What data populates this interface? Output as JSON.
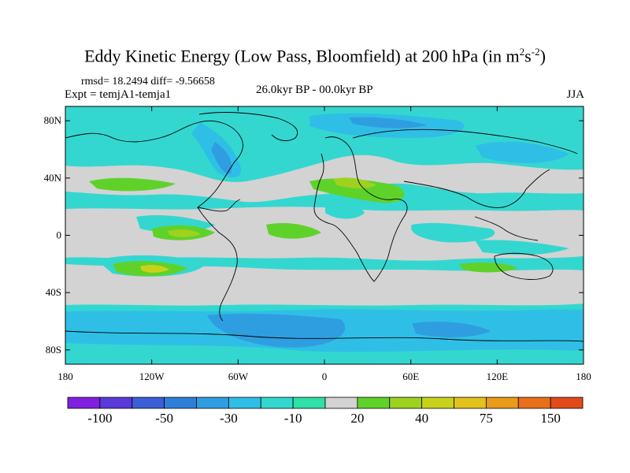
{
  "title_main": "Eddy Kinetic Energy (Low Pass, Bloomfield) at 200 hPa (in m",
  "title_sup1": "2",
  "title_mid": "s",
  "title_sup2": "-2",
  "title_end": ")",
  "stats": "rmsd= 18.2494 diff= -9.56658",
  "expt": "Expt = temjA1-temja1",
  "period": "26.0kyr BP - 00.0kyr BP",
  "season": "JJA",
  "lat_ticks": [
    {
      "lat": 80,
      "label": "80N"
    },
    {
      "lat": 40,
      "label": "40N"
    },
    {
      "lat": 0,
      "label": "0"
    },
    {
      "lat": -40,
      "label": "40S"
    },
    {
      "lat": -80,
      "label": "80S"
    }
  ],
  "lon_ticks": [
    {
      "lon": -180,
      "label": "180"
    },
    {
      "lon": -120,
      "label": "120W"
    },
    {
      "lon": -60,
      "label": "60W"
    },
    {
      "lon": 0,
      "label": "0"
    },
    {
      "lon": 60,
      "label": "60E"
    },
    {
      "lon": 120,
      "label": "120E"
    },
    {
      "lon": 180,
      "label": "180"
    }
  ],
  "colorbar": {
    "colors": [
      "#7f1fe0",
      "#5a3ad8",
      "#3b5fd6",
      "#2f7fd8",
      "#2f9ee0",
      "#2fbfe6",
      "#33d7d0",
      "#2fe0a8",
      "#d3d3d3",
      "#5fd22a",
      "#9ed21f",
      "#c9d21a",
      "#e3c21a",
      "#e89a1a",
      "#e8701a",
      "#e34a1a"
    ],
    "labels": [
      {
        "boundary": 2,
        "text": "-100"
      },
      {
        "boundary": 4,
        "text": "-50"
      },
      {
        "boundary": 6,
        "text": "-30"
      },
      {
        "boundary": 8,
        "text": "-10"
      },
      {
        "boundary": 10,
        "text": "20"
      },
      {
        "boundary": 12,
        "text": "40"
      },
      {
        "boundary": 14,
        "text": "75"
      },
      {
        "boundary": 16,
        "text": "150"
      }
    ]
  }
}
